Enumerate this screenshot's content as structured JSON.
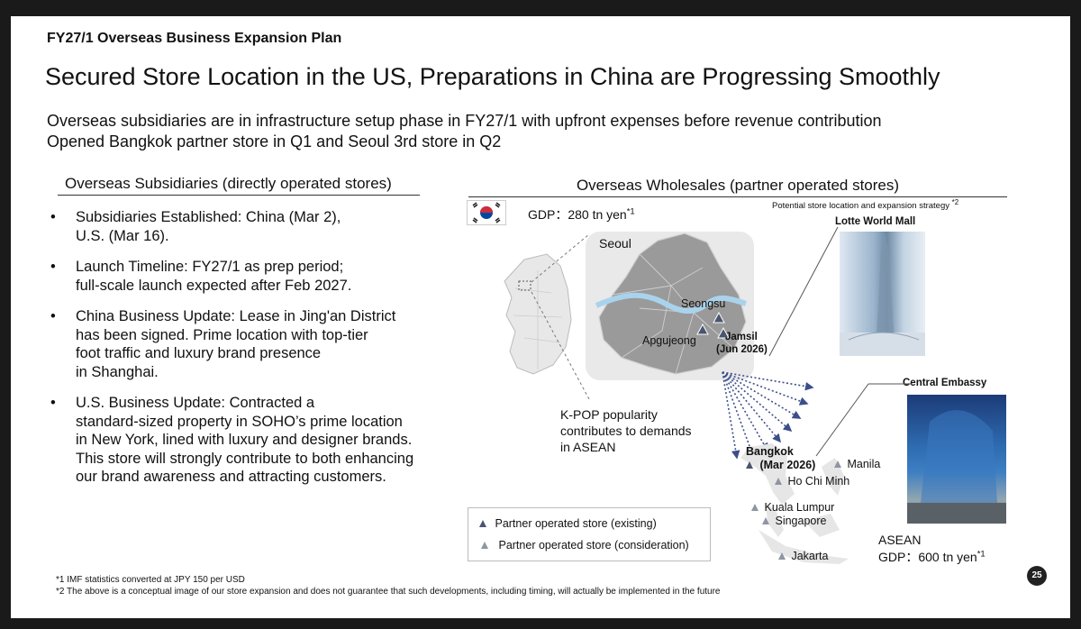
{
  "header": {
    "eyebrow": "FY27/1 Overseas Business Expansion Plan",
    "title": "Secured Store Location in the US, Preparations in China are Progressing Smoothly",
    "subtitle_lines": [
      "Overseas subsidiaries are in infrastructure setup phase in FY27/1 with upfront expenses before revenue contribution",
      "Opened Bangkok partner store in Q1 and Seoul 3rd store in Q2"
    ]
  },
  "left": {
    "heading": "Overseas Subsidiaries (directly operated stores)",
    "bullet_char": "•",
    "bullets": [
      {
        "lines": [
          "Subsidiaries Established: China (Mar 2),",
          "U.S. (Mar 16)."
        ]
      },
      {
        "lines": [
          "Launch Timeline: FY27/1 as prep period;",
          "full-scale launch expected after Feb 2027."
        ]
      },
      {
        "lines": [
          "China Business Update: Lease in Jing'an District",
          "has been signed. Prime location with top-tier",
          "foot traffic and luxury brand presence",
          "in Shanghai."
        ]
      },
      {
        "lines": [
          "U.S. Business Update: Contracted a",
          "standard-sized property in SOHO’s prime location",
          "in New York, lined with luxury and designer brands.",
          "This store will strongly contribute to both enhancing",
          "our brand awareness and attracting customers."
        ]
      }
    ]
  },
  "right": {
    "heading": "Overseas Wholesales (partner operated stores)",
    "potential_note": "Potential store location and expansion strategy",
    "potential_note_sup": "*2",
    "korea_gdp": "GDP：280 tn yen",
    "korea_gdp_sup": "*1",
    "seoul_label": "Seoul",
    "stores": {
      "seongsu": "Seongsu",
      "apgujeong": "Apgujeong",
      "jamsil": "Jamsil",
      "jamsil_date": "(Jun 2026)"
    },
    "kpop_lines": [
      "K-POP popularity",
      "contributes to demands",
      "in ASEAN"
    ],
    "asean_cities": {
      "bangkok": "Bangkok",
      "bangkok_date": "(Mar 2026)",
      "hcm": "Ho Chi Minh",
      "manila": "Manila",
      "kl": "Kuala Lumpur",
      "singapore": "Singapore",
      "jakarta": "Jakarta"
    },
    "photo1_label": "Lotte World Mall",
    "photo2_label": "Central Embassy",
    "asean_label": "ASEAN",
    "asean_gdp": "GDP：600 tn yen",
    "asean_gdp_sup": "*1",
    "legend": {
      "existing": "Partner operated store (existing)",
      "consideration": "Partner operated store (consideration)"
    }
  },
  "footnotes": [
    "*1 IMF statistics converted at JPY 150 per USD",
    "*2 The above is a conceptual image of our store expansion and does not guarantee that such developments, including timing, will actually be implemented in the future"
  ],
  "page_number": "25",
  "colors": {
    "existing_marker": "#4a5670",
    "consideration_marker": "#8e95a3",
    "map_gray": "#9a9a9a",
    "river": "#a9d3ec",
    "arrow": "#3b4f8a"
  }
}
